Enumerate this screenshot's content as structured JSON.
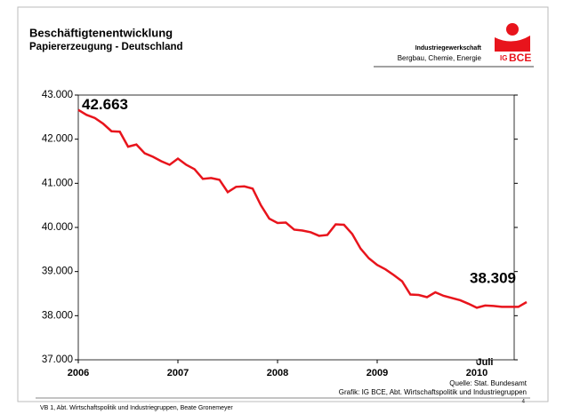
{
  "header": {
    "title": "Beschäftigtenentwicklung",
    "subtitle": "Papiererzeugung  -  Deutschland",
    "org_line1": "Industriegewerkschaft",
    "org_line2": "Bergbau, Chemie, Energie",
    "logo_ig": "IG",
    "logo_bce": "BCE"
  },
  "chart_data": {
    "type": "line",
    "categories": [
      "2006",
      null,
      null,
      null,
      null,
      null,
      null,
      null,
      null,
      null,
      null,
      null,
      "2007",
      null,
      null,
      null,
      null,
      null,
      null,
      null,
      null,
      null,
      null,
      null,
      "2008",
      null,
      null,
      null,
      null,
      null,
      null,
      null,
      null,
      null,
      null,
      null,
      "2009",
      null,
      null,
      null,
      null,
      null,
      null,
      null,
      null,
      null,
      null,
      null,
      "2010",
      null,
      null,
      null,
      null,
      null,
      null
    ],
    "series": [
      {
        "color": "#e8141c",
        "values": [
          42663,
          42550,
          42480,
          42350,
          42180,
          42170,
          41830,
          41880,
          41680,
          41600,
          41500,
          41420,
          41560,
          41420,
          41320,
          41100,
          41120,
          41080,
          40800,
          40920,
          40930,
          40880,
          40500,
          40200,
          40100,
          40110,
          39950,
          39930,
          39890,
          39810,
          39830,
          40070,
          40060,
          39850,
          39520,
          39300,
          39150,
          39050,
          38920,
          38780,
          38480,
          38470,
          38420,
          38530,
          38450,
          38400,
          38350,
          38270,
          38180,
          38230,
          38220,
          38200,
          38200,
          38200,
          38309
        ],
        "value_labels": [
          "42.663",
          null,
          null,
          null,
          null,
          null,
          null,
          null,
          null,
          null,
          null,
          null,
          null,
          null,
          null,
          null,
          null,
          null,
          null,
          null,
          null,
          null,
          null,
          null,
          null,
          null,
          null,
          null,
          null,
          null,
          null,
          null,
          null,
          null,
          null,
          null,
          null,
          null,
          null,
          null,
          null,
          null,
          null,
          null,
          null,
          null,
          null,
          null,
          null,
          null,
          null,
          null,
          null,
          null,
          "38.309"
        ]
      }
    ],
    "ylim": [
      37000,
      43000
    ],
    "yticks": [
      {
        "value": 37000,
        "label": "37.000"
      },
      {
        "value": 38000,
        "label": "38.000"
      },
      {
        "value": 39000,
        "label": "39.000"
      },
      {
        "value": 40000,
        "label": "40.000"
      },
      {
        "value": 41000,
        "label": "41.000"
      },
      {
        "value": 42000,
        "label": "42.000"
      },
      {
        "value": 43000,
        "label": "43.000"
      }
    ],
    "annotations": [
      "Juli"
    ]
  },
  "source": "Quelle: Stat. Bundesamt",
  "credit": "Grafik: IG BCE, Abt. Wirtschaftspolitik und Industriegruppen",
  "footer": "VB 1, Abt. Wirtschaftspolitik und Industriegruppen, Beate Gronemeyer",
  "page": "4"
}
